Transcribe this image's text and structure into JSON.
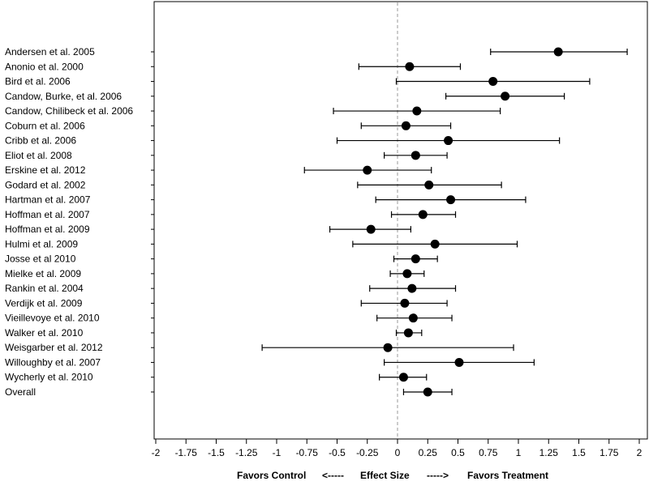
{
  "chart_data": {
    "type": "scatter",
    "subtype": "forest-plot",
    "title": "",
    "xlabel": "Favors Control   <-----      Effect Size      ----->      Favors Treatment",
    "xlabel_parts": {
      "left": "Favors Control",
      "left_arrow": "<-----",
      "center": "Effect Size",
      "right_arrow": "----->",
      "right": "Favors Treatment"
    },
    "ylabel": "",
    "xlim": [
      -2,
      2
    ],
    "xticks": [
      -2,
      -1.75,
      -1.5,
      -1.25,
      -1,
      -0.75,
      -0.5,
      -0.25,
      0,
      0.25,
      0.5,
      0.75,
      1,
      1.25,
      1.5,
      1.75,
      2
    ],
    "xtick_labels": [
      "-2",
      "-1.75",
      "-1.5",
      "-1.25",
      "-1",
      "-0.75",
      "-0.5",
      "-0.25",
      "0",
      "0.25",
      "0.5",
      "0.75",
      "1",
      "1.25",
      "1.5",
      "1.75",
      "2"
    ],
    "reference_line": 0,
    "grid": false,
    "legend": "none",
    "point_color": "#000000",
    "reference_line_color": "#999999",
    "studies": [
      {
        "label": "Andersen et al. 2005",
        "effect": 1.33,
        "lower": 0.77,
        "upper": 1.9
      },
      {
        "label": "Anonio et al. 2000",
        "effect": 0.1,
        "lower": -0.32,
        "upper": 0.52
      },
      {
        "label": "Bird et al. 2006",
        "effect": 0.79,
        "lower": -0.01,
        "upper": 1.59
      },
      {
        "label": "Candow, Burke, et al. 2006",
        "effect": 0.89,
        "lower": 0.4,
        "upper": 1.38
      },
      {
        "label": "Candow, Chilibeck et al. 2006",
        "effect": 0.16,
        "lower": -0.53,
        "upper": 0.85
      },
      {
        "label": "Coburn et al. 2006",
        "effect": 0.07,
        "lower": -0.3,
        "upper": 0.44
      },
      {
        "label": "Cribb et al. 2006",
        "effect": 0.42,
        "lower": -0.5,
        "upper": 1.34
      },
      {
        "label": "Eliot et al. 2008",
        "effect": 0.15,
        "lower": -0.11,
        "upper": 0.41
      },
      {
        "label": "Erskine et al. 2012",
        "effect": -0.25,
        "lower": -0.77,
        "upper": 0.28
      },
      {
        "label": "Godard et al.  2002",
        "effect": 0.26,
        "lower": -0.33,
        "upper": 0.86
      },
      {
        "label": "Hartman et al. 2007",
        "effect": 0.44,
        "lower": -0.18,
        "upper": 1.06
      },
      {
        "label": "Hoffman et al. 2007",
        "effect": 0.21,
        "lower": -0.05,
        "upper": 0.48
      },
      {
        "label": "Hoffman et al. 2009",
        "effect": -0.22,
        "lower": -0.56,
        "upper": 0.11
      },
      {
        "label": "Hulmi et al. 2009",
        "effect": 0.31,
        "lower": -0.37,
        "upper": 0.99
      },
      {
        "label": "Josse et al 2010",
        "effect": 0.15,
        "lower": -0.03,
        "upper": 0.33
      },
      {
        "label": "Mielke et al. 2009",
        "effect": 0.08,
        "lower": -0.06,
        "upper": 0.22
      },
      {
        "label": "Rankin et al. 2004",
        "effect": 0.12,
        "lower": -0.23,
        "upper": 0.48
      },
      {
        "label": "Verdijk et al. 2009",
        "effect": 0.06,
        "lower": -0.3,
        "upper": 0.41
      },
      {
        "label": "Vieillevoye et al. 2010",
        "effect": 0.13,
        "lower": -0.17,
        "upper": 0.45
      },
      {
        "label": "Walker et al. 2010",
        "effect": 0.09,
        "lower": -0.01,
        "upper": 0.2
      },
      {
        "label": "Weisgarber et al. 2012",
        "effect": -0.08,
        "lower": -1.12,
        "upper": 0.96
      },
      {
        "label": "Willoughby et al. 2007",
        "effect": 0.51,
        "lower": -0.11,
        "upper": 1.13
      },
      {
        "label": "Wycherly et al. 2010",
        "effect": 0.05,
        "lower": -0.15,
        "upper": 0.24
      },
      {
        "label": "Overall",
        "effect": 0.25,
        "lower": 0.05,
        "upper": 0.45
      }
    ]
  }
}
